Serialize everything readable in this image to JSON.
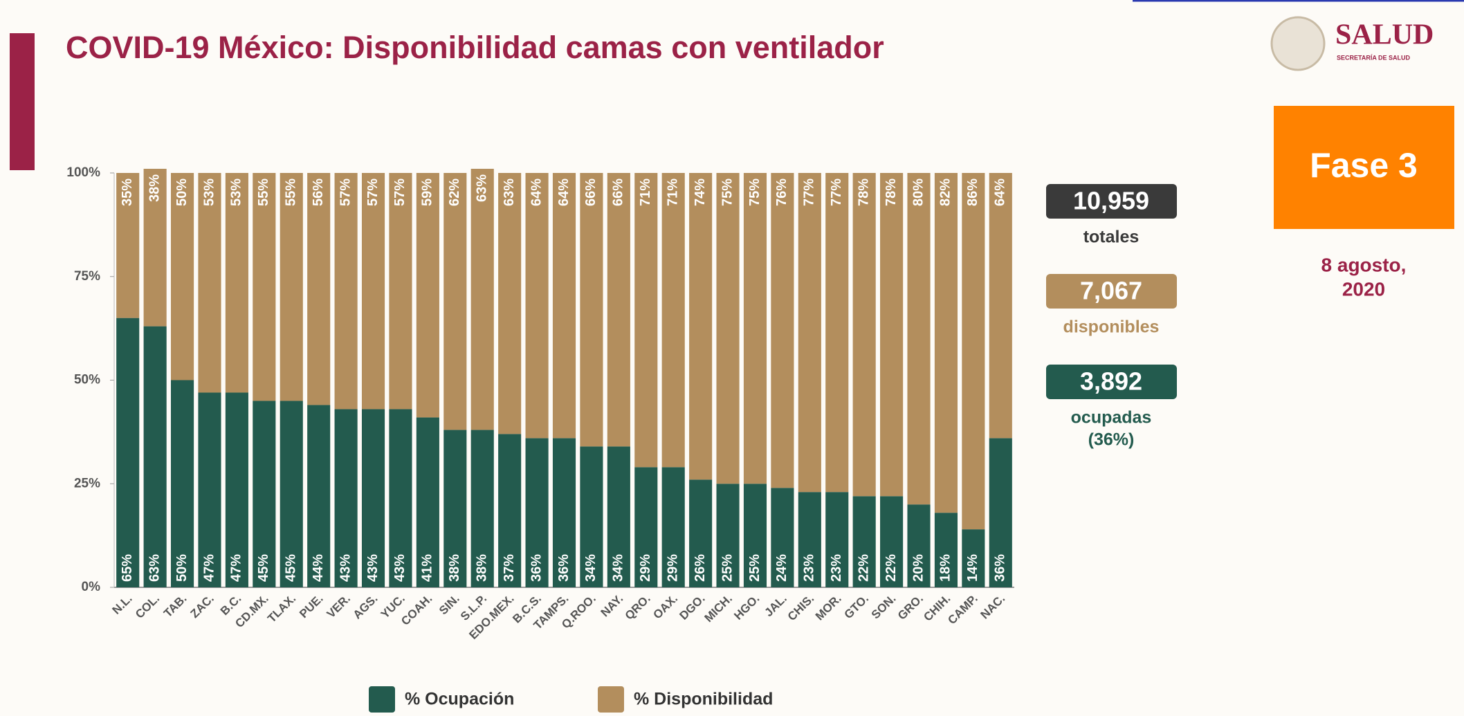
{
  "chart_data": {
    "type": "stacked_bar",
    "title": "COVID-19 México: Disponibilidad camas con ventilador",
    "categories": [
      "N.L.",
      "COL.",
      "TAB.",
      "ZAC.",
      "B.C.",
      "CD.MX.",
      "TLAX.",
      "PUE.",
      "VER.",
      "AGS.",
      "YUC.",
      "COAH.",
      "SIN.",
      "S.L.P.",
      "EDO.MEX.",
      "B.C.S.",
      "TAMPS.",
      "Q.ROO.",
      "NAY.",
      "QRO.",
      "OAX.",
      "DGO.",
      "MICH.",
      "HGO.",
      "JAL.",
      "CHIS.",
      "MOR.",
      "GTO.",
      "SON.",
      "GRO.",
      "CHIH.",
      "CAMP.",
      "NAC."
    ],
    "series": [
      {
        "name": "% Ocupación",
        "color": "#235b4e",
        "values": [
          65,
          63,
          50,
          47,
          47,
          45,
          45,
          44,
          43,
          43,
          43,
          41,
          38,
          38,
          37,
          36,
          36,
          34,
          34,
          29,
          29,
          26,
          25,
          25,
          24,
          23,
          23,
          22,
          22,
          20,
          18,
          14,
          36
        ],
        "value_labels": [
          "65%",
          "63%",
          "50%",
          "47%",
          "47%",
          "45%",
          "45%",
          "44%",
          "43%",
          "43%",
          "43%",
          "41%",
          "38%",
          "38%",
          "37%",
          "36%",
          "36%",
          "34%",
          "34%",
          "29%",
          "29%",
          "26%",
          "25%",
          "25%",
          "24%",
          "23%",
          "23%",
          "22%",
          "22%",
          "20%",
          "18%",
          "14%",
          "36%"
        ]
      },
      {
        "name": "% Disponibilidad",
        "color": "#b38e5d",
        "values": [
          35,
          38,
          50,
          53,
          53,
          55,
          55,
          56,
          57,
          57,
          57,
          59,
          62,
          63,
          63,
          64,
          64,
          66,
          66,
          71,
          71,
          74,
          75,
          75,
          76,
          77,
          77,
          78,
          78,
          80,
          82,
          86,
          64
        ],
        "value_labels": [
          "35%",
          "38%",
          "50%",
          "53%",
          "53%",
          "55%",
          "55%",
          "56%",
          "57%",
          "57%",
          "57%",
          "59%",
          "62%",
          "63%",
          "63%",
          "64%",
          "64%",
          "66%",
          "66%",
          "71%",
          "71%",
          "74%",
          "75%",
          "75%",
          "76%",
          "77%",
          "77%",
          "78%",
          "78%",
          "80%",
          "82%",
          "86%",
          "64%"
        ]
      }
    ],
    "ylim": [
      0,
      100
    ],
    "yticks": [
      {
        "value": 0,
        "label": "0%"
      },
      {
        "value": 25,
        "label": "25%"
      },
      {
        "value": 50,
        "label": "50%"
      },
      {
        "value": 75,
        "label": "75%"
      },
      {
        "value": 100,
        "label": "100%"
      }
    ],
    "grid": false,
    "legend": "bottom"
  },
  "summary": [
    {
      "value": "10,959",
      "label": [
        "totales"
      ],
      "color": "#3a3a3a",
      "text_color": "#3a3a3a"
    },
    {
      "value": "7,067",
      "label": [
        "disponibles"
      ],
      "color": "#b38e5d",
      "text_color": "#b38e5d"
    },
    {
      "value": "3,892",
      "label": [
        "ocupadas",
        "(36%)"
      ],
      "color": "#235b4e",
      "text_color": "#235b4e"
    }
  ],
  "slide": {
    "logo": "SALUD",
    "logo_sub": "SECRETARÍA DE SALUD",
    "phase": "Fase 3",
    "date": [
      "8 agosto,",
      "2020"
    ]
  }
}
